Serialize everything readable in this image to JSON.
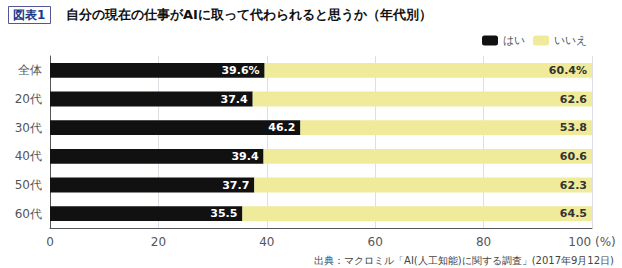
{
  "chart_data": {
    "type": "bar",
    "orientation": "horizontal",
    "stacked": true,
    "title": "自分の現在の仕事がAIに取って代わられると思うか（年代別）",
    "annotations": [
      "図表1",
      "出典：マクロミル「AI(人工知能)に関する調査」(2017年9月12日)"
    ],
    "categories": [
      "全体",
      "20代",
      "30代",
      "40代",
      "50代",
      "60代"
    ],
    "series": [
      {
        "name": "はい",
        "color": "#111111",
        "values": [
          39.6,
          37.4,
          46.2,
          39.4,
          37.7,
          35.5
        ],
        "value_labels": [
          "39.6%",
          "37.4",
          "46.2",
          "39.4",
          "37.7",
          "35.5"
        ]
      },
      {
        "name": "いいえ",
        "color": "#f0eb9a",
        "values": [
          60.4,
          62.6,
          53.8,
          60.6,
          62.3,
          64.5
        ],
        "value_labels": [
          "60.4%",
          "62.6",
          "53.8",
          "60.6",
          "62.3",
          "64.5"
        ]
      }
    ],
    "xlim": [
      0,
      100
    ],
    "xticks": [
      0,
      20,
      40,
      60,
      80,
      {
        "value": 100,
        "label": "100 (%)"
      }
    ],
    "grid": true,
    "legend": "top-right",
    "data_labels": true
  }
}
